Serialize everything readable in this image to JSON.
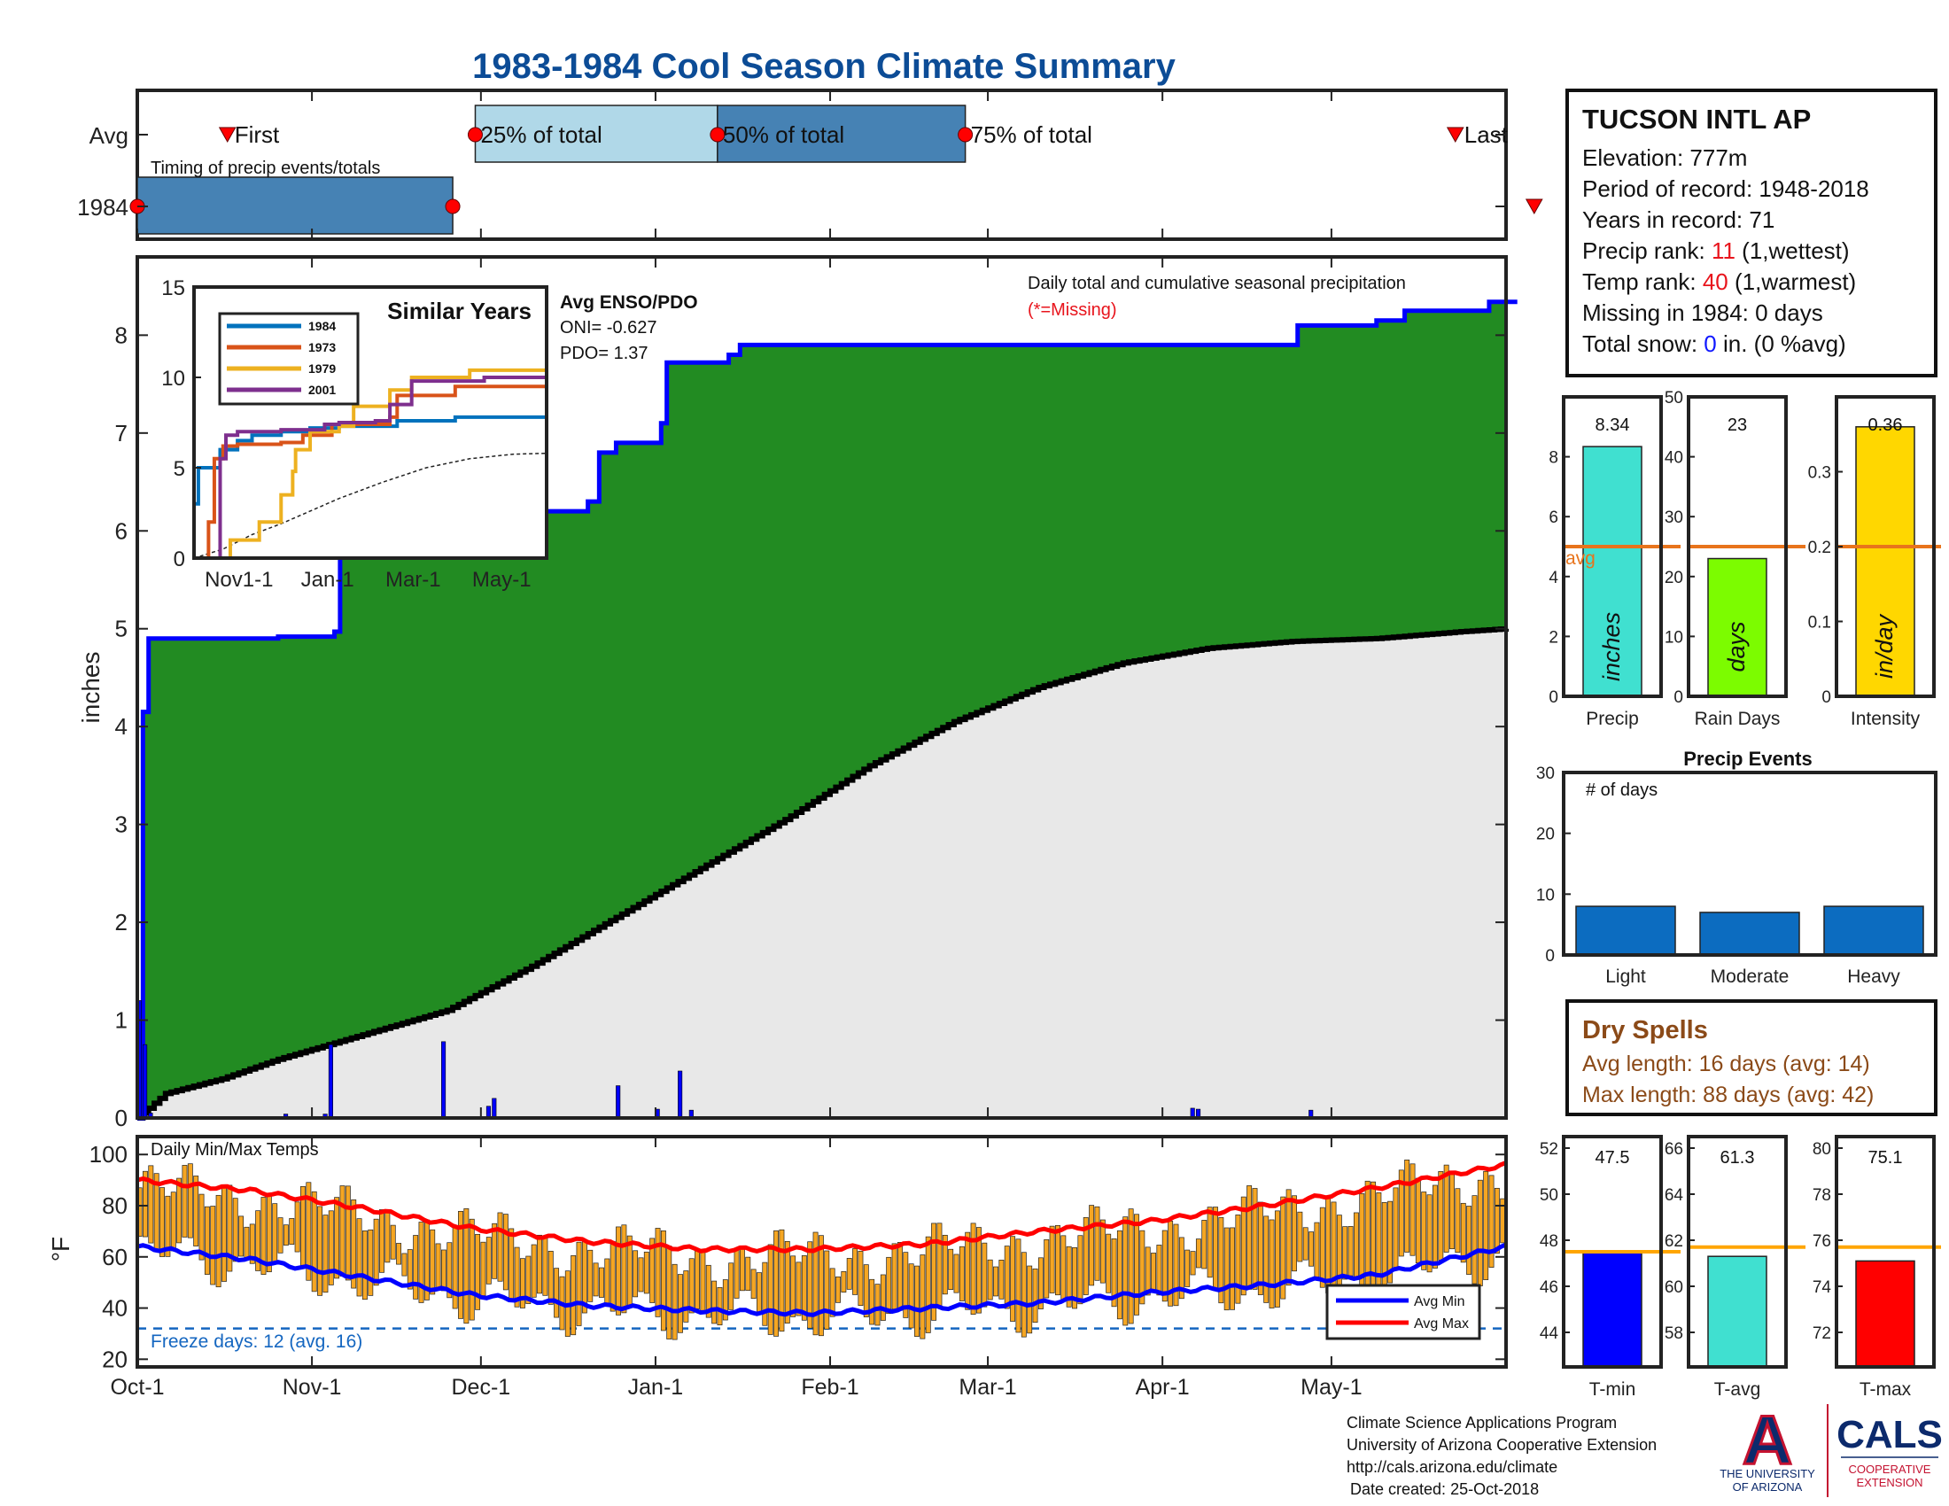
{
  "title": "1983-1984 Cool Season Climate Summary",
  "x_ticks": [
    "Oct-1",
    "Nov-1",
    "Dec-1",
    "Jan-1",
    "Feb-1",
    "Mar-1",
    "Apr-1",
    "May-1"
  ],
  "colors": {
    "title": "#0c4c96",
    "precip_fill": "#228b22",
    "avg_fill": "#e8e8e8",
    "cum_line": "#0000ff",
    "avg_line": "#000000",
    "bars": "#0000ff",
    "missing": "#ff0000",
    "avg_line_orange": "#e8741c",
    "bar_orange": "#f5a623",
    "timing_light": "#b0d8e8",
    "timing_dark": "#4682b4",
    "rank_red": "#e8141c",
    "snow_blue": "#1018ff",
    "dry_brown": "#8b4a18"
  },
  "timing": {
    "label": "Timing of precip events/totals",
    "row_labels": [
      "Avg",
      "1984"
    ],
    "markers": {
      "first": "First",
      "p25": "25% of total",
      "p50": "50% of total",
      "p75": "75% of total",
      "last": "Last"
    },
    "avg_days": {
      "first": 16,
      "p25": 60,
      "p50": 103,
      "p75": 147,
      "last": 234
    },
    "year_days": {
      "first": 0,
      "p25": 0,
      "p50": 0,
      "p75": 56,
      "last": 248
    }
  },
  "main_chart": {
    "ylabel": "inches",
    "y_ticks": [
      0,
      1,
      2,
      3,
      4,
      5,
      6,
      7,
      8
    ],
    "ylim": [
      0,
      8.8
    ],
    "annotation": "Daily total and cumulative seasonal precipitation",
    "missing_note": "(*=Missing)",
    "enso_title": "Avg ENSO/PDO",
    "oni": "ONI= -0.627",
    "pdo": "PDO= 1.37",
    "cumulative": [
      [
        0,
        0
      ],
      [
        1,
        4.15
      ],
      [
        2,
        4.9
      ],
      [
        25,
        4.92
      ],
      [
        35,
        4.97
      ],
      [
        36,
        6.2
      ],
      [
        80,
        6.3
      ],
      [
        82,
        6.8
      ],
      [
        85,
        6.9
      ],
      [
        93,
        7.1
      ],
      [
        94,
        7.72
      ],
      [
        101,
        7.72
      ],
      [
        105,
        7.8
      ],
      [
        107,
        7.9
      ],
      [
        140,
        7.9
      ],
      [
        150,
        7.9
      ],
      [
        200,
        7.9
      ],
      [
        206,
        8.1
      ],
      [
        220,
        8.15
      ],
      [
        225,
        8.25
      ],
      [
        240,
        8.3
      ],
      [
        245,
        8.34
      ],
      [
        240,
        8.34
      ],
      [
        243,
        8.34
      ]
    ],
    "average": [
      [
        0,
        0
      ],
      [
        5,
        0.25
      ],
      [
        15,
        0.4
      ],
      [
        25,
        0.6
      ],
      [
        40,
        0.85
      ],
      [
        55,
        1.1
      ],
      [
        70,
        1.55
      ],
      [
        85,
        2.05
      ],
      [
        100,
        2.55
      ],
      [
        115,
        3.05
      ],
      [
        130,
        3.6
      ],
      [
        145,
        4.05
      ],
      [
        160,
        4.4
      ],
      [
        175,
        4.65
      ],
      [
        190,
        4.8
      ],
      [
        205,
        4.87
      ],
      [
        220,
        4.9
      ],
      [
        235,
        4.97
      ],
      [
        243,
        5.0
      ]
    ],
    "daily": [
      [
        0,
        1.2
      ],
      [
        1,
        0.75
      ],
      [
        2,
        0.05
      ],
      [
        26,
        0.04
      ],
      [
        33,
        0.04
      ],
      [
        34,
        0.75
      ],
      [
        54,
        0.78
      ],
      [
        62,
        0.12
      ],
      [
        63,
        0.2
      ],
      [
        85,
        0.33
      ],
      [
        92,
        0.09
      ],
      [
        96,
        0.48
      ],
      [
        98,
        0.08
      ],
      [
        187,
        0.1
      ],
      [
        188,
        0.09
      ],
      [
        208,
        0.08
      ]
    ]
  },
  "inset": {
    "title": "Similar Years",
    "y_ticks": [
      0,
      5,
      10,
      15
    ],
    "x_ticks": [
      "Nov1-1",
      "Jan-1",
      "Mar-1",
      "May-1"
    ],
    "series": [
      {
        "name": "1984",
        "color": "#0072bd",
        "values": [
          [
            0,
            3
          ],
          [
            3,
            5
          ],
          [
            15,
            5
          ],
          [
            18,
            6
          ],
          [
            30,
            6.5
          ],
          [
            40,
            6.8
          ],
          [
            60,
            7.0
          ],
          [
            80,
            7.2
          ],
          [
            100,
            7.3
          ],
          [
            140,
            7.6
          ],
          [
            180,
            7.8
          ],
          [
            243,
            8.34
          ]
        ]
      },
      {
        "name": "1973",
        "color": "#d95319",
        "values": [
          [
            0,
            0
          ],
          [
            8,
            0
          ],
          [
            10,
            2
          ],
          [
            14,
            5.5
          ],
          [
            20,
            6.2
          ],
          [
            30,
            6.3
          ],
          [
            60,
            6.4
          ],
          [
            75,
            6.8
          ],
          [
            95,
            7.4
          ],
          [
            135,
            7.8
          ],
          [
            140,
            9.0
          ],
          [
            180,
            9.5
          ],
          [
            243,
            10.0
          ]
        ]
      },
      {
        "name": "1979",
        "color": "#edb120",
        "values": [
          [
            0,
            0
          ],
          [
            20,
            0
          ],
          [
            25,
            1
          ],
          [
            45,
            2
          ],
          [
            60,
            3.5
          ],
          [
            68,
            4.8
          ],
          [
            70,
            6.0
          ],
          [
            80,
            7.0
          ],
          [
            100,
            7.3
          ],
          [
            110,
            8.4
          ],
          [
            135,
            9.3
          ],
          [
            150,
            10.0
          ],
          [
            190,
            10.4
          ],
          [
            243,
            10.8
          ]
        ]
      },
      {
        "name": "2001",
        "color": "#7e2f8e",
        "values": [
          [
            0,
            0
          ],
          [
            15,
            0
          ],
          [
            18,
            5.5
          ],
          [
            22,
            6.8
          ],
          [
            30,
            7.0
          ],
          [
            60,
            7.1
          ],
          [
            90,
            7.4
          ],
          [
            100,
            7.5
          ],
          [
            125,
            7.6
          ],
          [
            135,
            8.5
          ],
          [
            150,
            9.8
          ],
          [
            200,
            10.0
          ],
          [
            243,
            10.3
          ]
        ]
      }
    ],
    "average": [
      [
        0,
        0
      ],
      [
        20,
        0.5
      ],
      [
        40,
        1.3
      ],
      [
        60,
        1.9
      ],
      [
        80,
        2.6
      ],
      [
        100,
        3.3
      ],
      [
        130,
        4.2
      ],
      [
        160,
        5.0
      ],
      [
        190,
        5.5
      ],
      [
        220,
        5.75
      ],
      [
        243,
        5.8
      ]
    ]
  },
  "temps": {
    "title": "Daily Min/Max Temps",
    "ylabel": "°F",
    "y_ticks": [
      20,
      40,
      60,
      80,
      100
    ],
    "freeze_label": "Freeze days: 12 (avg. 16)",
    "legend": [
      "Avg Min",
      "Avg Max"
    ],
    "avg_min": [
      [
        0,
        64
      ],
      [
        20,
        59
      ],
      [
        40,
        52
      ],
      [
        60,
        45
      ],
      [
        80,
        41
      ],
      [
        100,
        39
      ],
      [
        120,
        38
      ],
      [
        140,
        40
      ],
      [
        160,
        42
      ],
      [
        180,
        46
      ],
      [
        200,
        49
      ],
      [
        220,
        53
      ],
      [
        243,
        64
      ]
    ],
    "avg_max": [
      [
        0,
        90
      ],
      [
        20,
        86
      ],
      [
        40,
        79
      ],
      [
        60,
        71
      ],
      [
        80,
        66
      ],
      [
        100,
        63
      ],
      [
        120,
        63
      ],
      [
        140,
        65
      ],
      [
        160,
        70
      ],
      [
        180,
        74
      ],
      [
        200,
        80
      ],
      [
        220,
        87
      ],
      [
        243,
        96
      ]
    ]
  },
  "station": {
    "name": "TUCSON INTL AP",
    "elevation": "Elevation: 777m",
    "period": "Period of record: 1948-2018",
    "years": "Years in record: 71",
    "precip_rank_pre": "Precip rank: ",
    "precip_rank": "11",
    "precip_rank_post": " (1,wettest)",
    "temp_rank_pre": "Temp rank: ",
    "temp_rank": "40",
    "temp_rank_post": " (1,warmest)",
    "missing": "Missing in 1984: 0 days",
    "snow_pre": "Total snow: ",
    "snow_val": "0",
    "snow_post": " in. (0 %avg)"
  },
  "summary_bars": [
    {
      "label": "Precip",
      "unit": "inches",
      "value": 8.34,
      "value_label": "8.34",
      "avg": 5.0,
      "ticks": [
        0,
        2,
        4,
        6,
        8
      ],
      "ylim": [
        0,
        10
      ],
      "color": "#40e0d0",
      "avg_label": "avg"
    },
    {
      "label": "Rain Days",
      "unit": "days",
      "value": 23,
      "value_label": "23",
      "avg": 25,
      "ticks": [
        0,
        10,
        20,
        30,
        40,
        50
      ],
      "ylim": [
        0,
        50
      ],
      "color": "#7cfc00"
    },
    {
      "label": "Intensity",
      "unit": "in/day",
      "value": 0.36,
      "value_label": "0.36",
      "avg": 0.2,
      "ticks": [
        0,
        0.1,
        0.2,
        0.3
      ],
      "ylim": [
        0,
        0.4
      ],
      "color": "#ffd700"
    }
  ],
  "precip_events": {
    "title": "Precip Events",
    "ylabel": "# of days",
    "categories": [
      "Light",
      "Moderate",
      "Heavy"
    ],
    "values": [
      8,
      7,
      8
    ],
    "y_ticks": [
      0,
      10,
      20,
      30
    ],
    "ylim": [
      0,
      30
    ]
  },
  "dry_spells": {
    "title": "Dry Spells",
    "avg": "Avg length: 16 days (avg: 14)",
    "max": "Max length: 88 days (avg: 42)"
  },
  "temp_bars": [
    {
      "label": "T-min",
      "value": 47.5,
      "value_label": "47.5",
      "avg": 47.5,
      "ticks": [
        44,
        46,
        48,
        50,
        52
      ],
      "ylim": [
        42.5,
        52.5
      ],
      "color": "#0000ff"
    },
    {
      "label": "T-avg",
      "value": 61.3,
      "value_label": "61.3",
      "avg": 61.7,
      "ticks": [
        58,
        60,
        62,
        64,
        66
      ],
      "ylim": [
        56.5,
        66.5
      ],
      "color": "#40e0d0"
    },
    {
      "label": "T-max",
      "value": 75.1,
      "value_label": "75.1",
      "avg": 75.7,
      "ticks": [
        72,
        74,
        76,
        78,
        80
      ],
      "ylim": [
        70.5,
        80.5
      ],
      "color": "#ff0000"
    }
  ],
  "footer": {
    "line1": "Climate Science Applications Program",
    "line2": "University of Arizona Cooperative Extension",
    "line3": "http://cals.arizona.edu/climate",
    "line4": "Date created: 25-Oct-2018"
  },
  "logos": {
    "ua_letter": "A",
    "ua_line1": "THE UNIVERSITY",
    "ua_line2": "OF ARIZONA",
    "cals": "CALS",
    "cals_line1": "COOPERATIVE",
    "cals_line2": "EXTENSION"
  }
}
